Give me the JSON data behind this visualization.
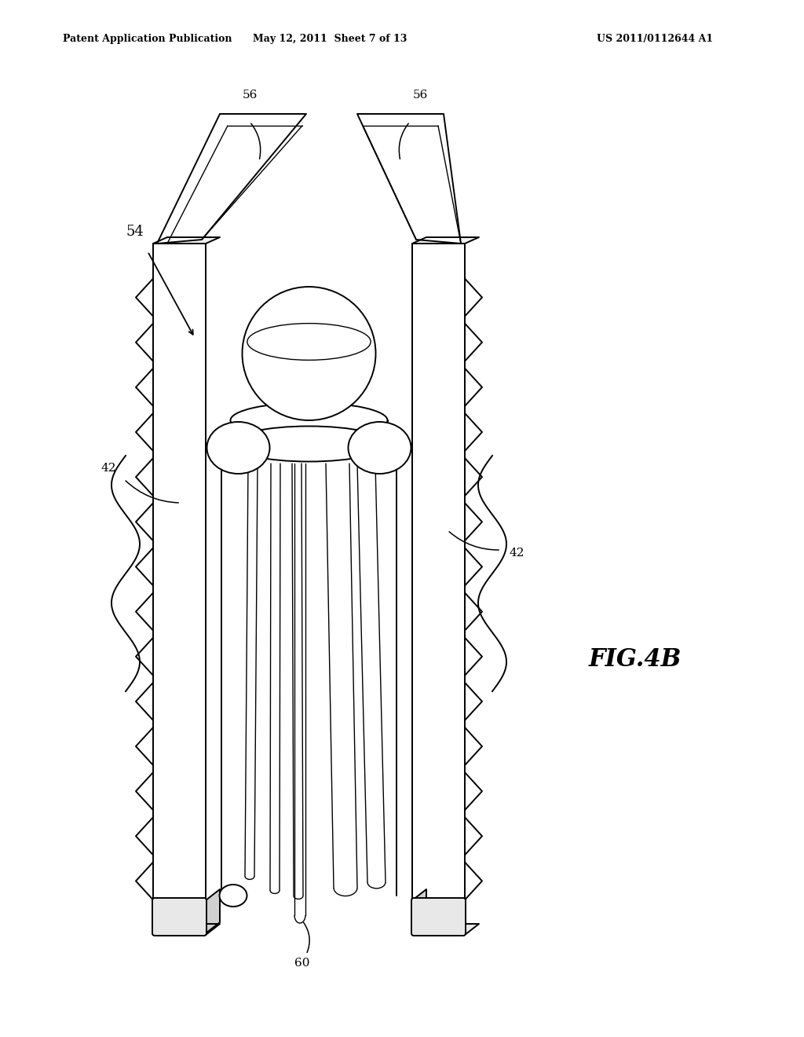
{
  "bg_color": "#ffffff",
  "line_color": "#000000",
  "lw": 1.4,
  "lw_thin": 1.0,
  "header_left": "Patent Application Publication",
  "header_center": "May 12, 2011  Sheet 7 of 13",
  "header_right": "US 2011/0112644 A1",
  "fig_label": "FIG.4B",
  "label_fs": 11
}
